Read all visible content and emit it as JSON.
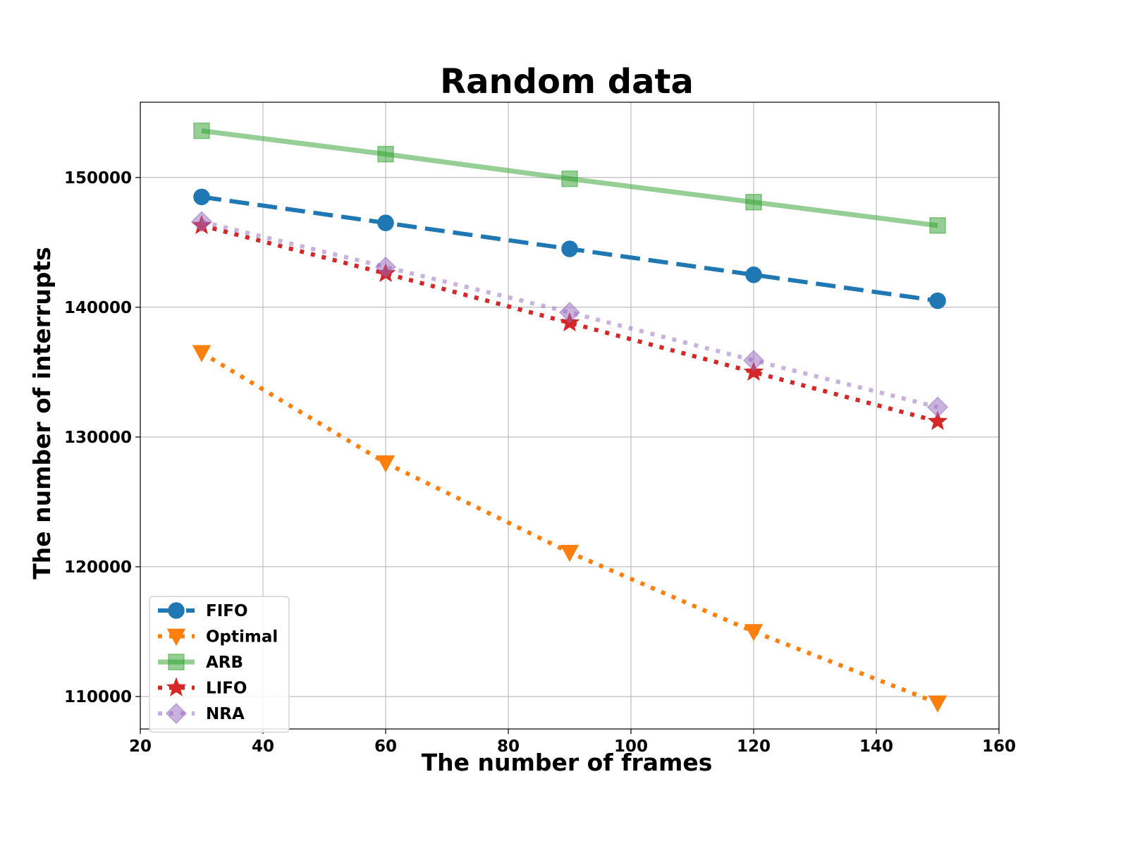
{
  "chart_data": {
    "type": "line",
    "title": "Random data",
    "xlabel": "The number of frames",
    "ylabel": "The number of interrupts",
    "xlim": [
      20,
      160
    ],
    "ylim": [
      107500,
      155800
    ],
    "xticks": [
      20,
      40,
      60,
      80,
      100,
      120,
      140,
      160
    ],
    "yticks": [
      110000,
      120000,
      130000,
      140000,
      150000
    ],
    "grid": true,
    "legend_position": "lower-left",
    "x": [
      30,
      60,
      90,
      120,
      150
    ],
    "series": [
      {
        "name": "FIFO",
        "values": [
          148500,
          146500,
          144500,
          142500,
          140500
        ],
        "color": "#1f77b4",
        "marker": "circle",
        "linestyle": "dashed",
        "alpha": 1.0
      },
      {
        "name": "Optimal",
        "values": [
          136500,
          128000,
          121100,
          115000,
          109500
        ],
        "color": "#ff7f0e",
        "marker": "triangle-down",
        "linestyle": "dotted",
        "alpha": 1.0
      },
      {
        "name": "ARB",
        "values": [
          153600,
          151800,
          149900,
          148100,
          146300
        ],
        "color": "#2ca02c",
        "marker": "square",
        "linestyle": "solid",
        "alpha": 0.5
      },
      {
        "name": "LIFO",
        "values": [
          146300,
          142600,
          138800,
          135000,
          131200
        ],
        "color": "#d62728",
        "marker": "star",
        "linestyle": "dotted",
        "alpha": 1.0
      },
      {
        "name": "NRA",
        "values": [
          146600,
          143100,
          139600,
          135900,
          132300
        ],
        "color": "#9467bd",
        "marker": "diamond",
        "linestyle": "dotted",
        "alpha": 0.5
      }
    ]
  }
}
